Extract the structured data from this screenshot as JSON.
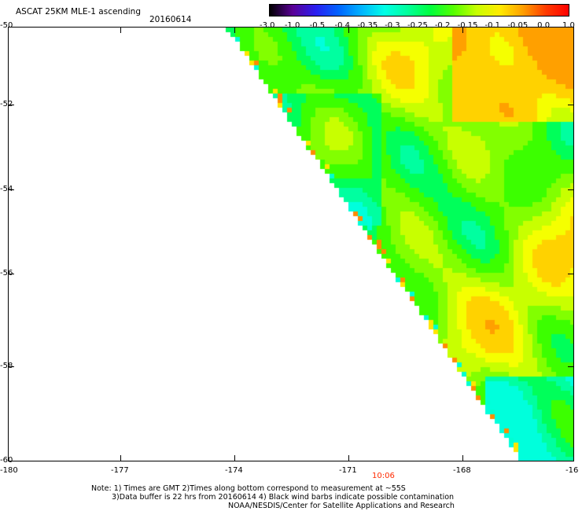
{
  "header": {
    "title": "ASCAT 25KM MLE-1 ascending",
    "date": "20160614"
  },
  "colorbar": {
    "labels": [
      "-3.0",
      "-1.0",
      "-0.5",
      "-0.4",
      "-0.35",
      "-0.3",
      "-0.25",
      "-0.2",
      "-0.15",
      "-0.1",
      "-0.05",
      "0.0",
      "1.0"
    ],
    "colors": [
      "#000000",
      "#5a0096",
      "#2a1ef0",
      "#0064ff",
      "#00b4ff",
      "#00ffe6",
      "#00ff9b",
      "#00ff3c",
      "#55ff00",
      "#c8ff00",
      "#ffeb00",
      "#ffa000",
      "#ff3c00",
      "#ff0000"
    ]
  },
  "map": {
    "lat_labels": [
      "-50",
      "-52",
      "-54",
      "-56",
      "-58",
      "-60"
    ],
    "lon_labels": [
      "-180",
      "-177",
      "-174",
      "-171",
      "-168",
      "-16"
    ],
    "time_label": "10:06",
    "time_color": "#ff2a00"
  },
  "notes": {
    "line1": "Note: 1) Times are GMT 2)Times along bottom correspond to measurement at ~55S",
    "line2": "3)Data buffer is 22 hrs from 20160614 4) Black wind barbs indicate possible contamination",
    "line3": "NOAA/NESDIS/Center for Satellite Applications and Research"
  }
}
